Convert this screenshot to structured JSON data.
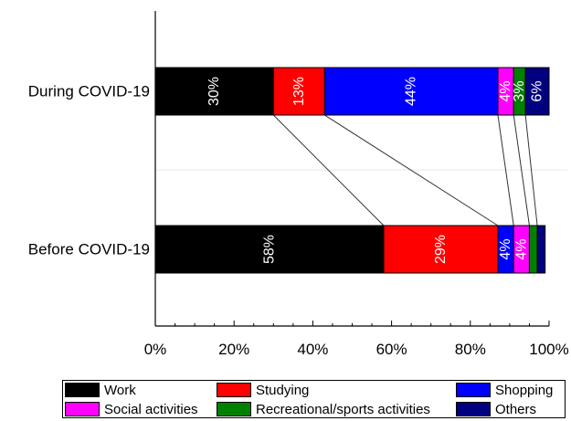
{
  "chart_data": {
    "type": "bar",
    "orientation": "horizontal",
    "stacked": true,
    "categories": [
      "During COVID-19",
      "Before COVID-19"
    ],
    "series": [
      {
        "name": "Work",
        "color": "#000000",
        "values": [
          30,
          58
        ],
        "labels": [
          "30%",
          "58%"
        ]
      },
      {
        "name": "Studying",
        "color": "#ff0000",
        "values": [
          13,
          29
        ],
        "labels": [
          "13%",
          "29%"
        ]
      },
      {
        "name": "Shopping",
        "color": "#0000ff",
        "values": [
          44,
          4
        ],
        "labels": [
          "44%",
          "4%"
        ]
      },
      {
        "name": "Social activities",
        "color": "#ff00ff",
        "values": [
          4,
          4
        ],
        "labels": [
          "4%",
          "4%"
        ]
      },
      {
        "name": "Recreational/sports activities",
        "color": "#008000",
        "values": [
          3,
          2
        ],
        "labels": [
          "3%",
          ""
        ]
      },
      {
        "name": "Others",
        "color": "#000080",
        "values": [
          6,
          2
        ],
        "labels": [
          "6%",
          ""
        ]
      }
    ],
    "xlim": [
      0,
      100
    ],
    "xticks": [
      "0%",
      "20%",
      "40%",
      "60%",
      "80%",
      "100%"
    ],
    "data_label_rotation": "vertical",
    "connector_lines": true,
    "legend_position": "bottom"
  }
}
